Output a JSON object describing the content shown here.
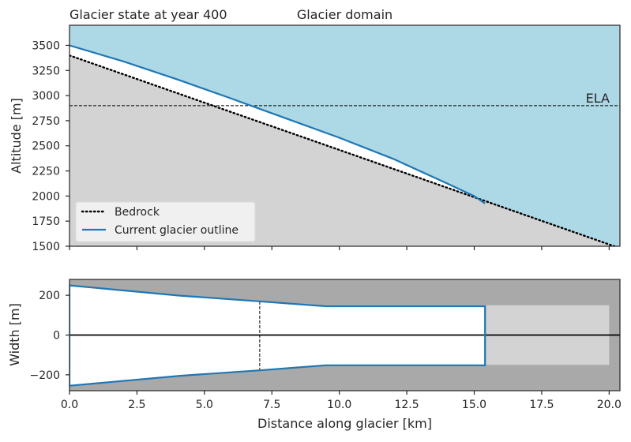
{
  "chart_data": [
    {
      "type": "line",
      "title_left": "Glacier state at year 400",
      "title_center": "Glacier domain",
      "xlabel": "",
      "ylabel": "Altitude [m]",
      "xlim": [
        0,
        20.4
      ],
      "ylim": [
        1500,
        3700
      ],
      "yticks": [
        1500,
        1750,
        2000,
        2250,
        2500,
        2750,
        3000,
        3250,
        3500
      ],
      "colors": {
        "sky": "#add8e6",
        "ground": "#d3d3d3",
        "glacier_line": "#1f77b4",
        "bedrock_line": "#000000"
      },
      "ela": {
        "label": "ELA",
        "y": 2900
      },
      "series": [
        {
          "name": "Bedrock",
          "style": "dotted",
          "x": [
            0,
            20.4
          ],
          "y": [
            3400,
            1480
          ]
        },
        {
          "name": "Current glacier outline",
          "style": "solid",
          "x": [
            0,
            2,
            4,
            6,
            8,
            10,
            12,
            14,
            15.0,
            15.4
          ],
          "y": [
            3500,
            3340,
            3160,
            2970,
            2775,
            2580,
            2370,
            2125,
            2000,
            1925
          ]
        }
      ],
      "legend_position": "lower-left"
    },
    {
      "type": "line",
      "xlabel": "Distance along glacier [km]",
      "ylabel": "Width [m]",
      "xlim": [
        0,
        20.4
      ],
      "ylim": [
        -280,
        280
      ],
      "xticks": [
        0.0,
        2.5,
        5.0,
        7.5,
        10.0,
        12.5,
        15.0,
        17.5,
        20.0
      ],
      "xtick_labels": [
        "0.0",
        "2.5",
        "5.0",
        "7.5",
        "10.0",
        "12.5",
        "15.0",
        "17.5",
        "20.0"
      ],
      "yticks": [
        -200,
        0,
        200
      ],
      "ytick_labels": [
        "−200",
        "0",
        "200"
      ],
      "colors": {
        "background": "#a9a9a9",
        "domain": "#d3d3d3",
        "glacier_fill": "#ffffff",
        "outline": "#1f77b4"
      },
      "domain_rect": {
        "x": [
          0,
          20
        ],
        "y": [
          -150,
          150
        ]
      },
      "glacier_outline": {
        "upper": {
          "x": [
            0,
            4.1,
            7,
            9.5,
            15.4
          ],
          "y": [
            250,
            198,
            170,
            145,
            145
          ]
        },
        "lower": {
          "x": [
            0,
            4.1,
            7,
            9.5,
            15.4
          ],
          "y": [
            -255,
            -205,
            -178,
            -152,
            -152
          ]
        }
      },
      "ela_x": 7.05
    }
  ]
}
